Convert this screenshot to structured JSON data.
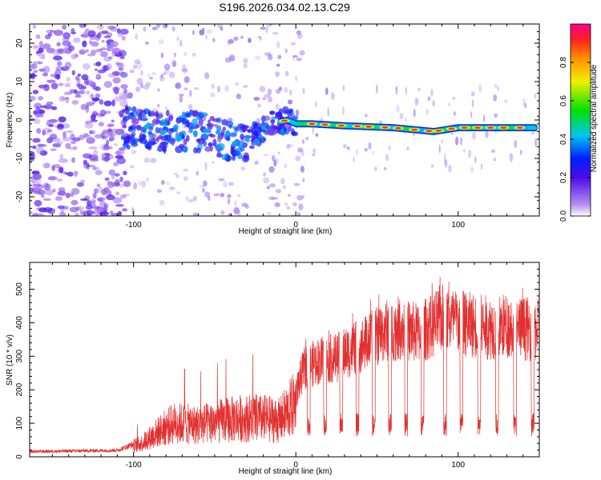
{
  "title": "S196.2026.034.02.13.C29",
  "colors": {
    "snr_line": "#e23030",
    "axis": "#000000",
    "background": "#ffffff"
  },
  "chart_data": [
    {
      "type": "heatmap",
      "name": "spectrogram",
      "xlabel": "Height of straight line (km)",
      "ylabel": "Frequency (Hz)",
      "xlim": [
        -164,
        150
      ],
      "ylim": [
        -25,
        25
      ],
      "x_ticks": [
        -100,
        0,
        100
      ],
      "y_ticks": [
        -20,
        -10,
        0,
        10,
        20
      ],
      "colorbar": {
        "label": "Normalized spectral amplitude",
        "range": [
          0,
          1
        ],
        "ticks": [
          0.0,
          0.2,
          0.4,
          0.6,
          0.8
        ],
        "tick_labels": [
          "0.0",
          "0.2",
          "0.4",
          "0.6",
          "0.8"
        ]
      },
      "ridge": {
        "description": "dominant spectral line",
        "points": [
          [
            -105,
            -2
          ],
          [
            -80,
            -3
          ],
          [
            -60,
            -3
          ],
          [
            -45,
            -5
          ],
          [
            -35,
            -6
          ],
          [
            -25,
            -4
          ],
          [
            -15,
            -1
          ],
          [
            -5,
            0
          ],
          [
            0,
            -1
          ],
          [
            10,
            -1
          ],
          [
            30,
            -1.5
          ],
          [
            60,
            -2
          ],
          [
            85,
            -3
          ],
          [
            100,
            -2
          ],
          [
            120,
            -2
          ],
          [
            145,
            -2
          ]
        ]
      }
    },
    {
      "type": "line",
      "name": "snr",
      "xlabel": "Height of straight line (km)",
      "ylabel": "SNR (10 * v/v)",
      "xlim": [
        -164,
        150
      ],
      "ylim": [
        0,
        580
      ],
      "x_ticks": [
        -100,
        0,
        100
      ],
      "y_ticks": [
        0,
        100,
        200,
        300,
        400,
        500
      ],
      "envelope": {
        "x": [
          -164,
          -110,
          -95,
          -85,
          -75,
          -60,
          -45,
          -35,
          -20,
          -10,
          0,
          5,
          15,
          25,
          35,
          45,
          55,
          65,
          75,
          85,
          90,
          100,
          110,
          120,
          130,
          140,
          150
        ],
        "high": [
          20,
          25,
          60,
          110,
          150,
          140,
          160,
          170,
          170,
          160,
          240,
          330,
          360,
          370,
          400,
          430,
          470,
          480,
          460,
          490,
          520,
          500,
          490,
          480,
          490,
          480,
          470
        ],
        "dropouts": [
          8,
          18,
          28,
          38,
          48,
          58,
          68,
          78,
          92,
          102,
          113,
          124,
          135,
          146
        ]
      }
    }
  ]
}
